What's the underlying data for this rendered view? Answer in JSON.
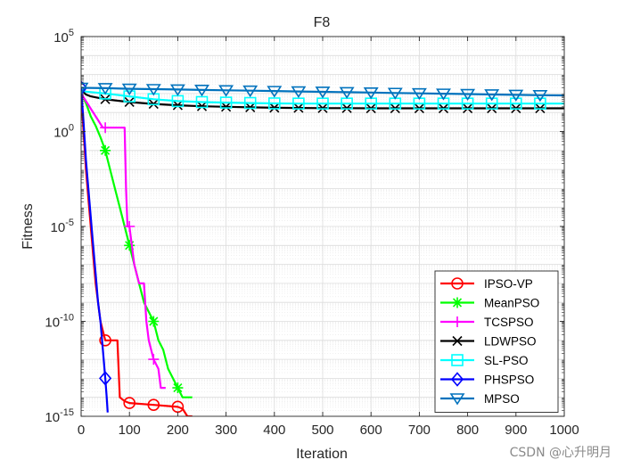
{
  "chart_data": {
    "type": "line",
    "title": "F8",
    "xlabel": "Iteration",
    "ylabel": "Fitness",
    "xlim": [
      0,
      1000
    ],
    "ylim_log10": [
      -15,
      5
    ],
    "yscale": "log",
    "grid": true,
    "x_ticks": [
      0,
      100,
      200,
      300,
      400,
      500,
      600,
      700,
      800,
      900,
      1000
    ],
    "y_ticks": [
      {
        "exp": 5,
        "base": "10",
        "power": "5"
      },
      {
        "exp": 0,
        "base": "10",
        "power": "0"
      },
      {
        "exp": -5,
        "base": "10",
        "power": "-5"
      },
      {
        "exp": -10,
        "base": "10",
        "power": "-10"
      },
      {
        "exp": -15,
        "base": "10",
        "power": "-15"
      }
    ],
    "legend_position": "bottom-right",
    "series": [
      {
        "name": "IPSO-VP",
        "color": "#ff0000",
        "marker": "circle",
        "x": [
          0,
          5,
          10,
          15,
          20,
          25,
          30,
          35,
          40,
          45,
          50,
          60,
          70,
          75,
          80,
          90,
          100,
          150,
          200,
          210,
          220,
          230
        ],
        "log10_y": [
          2.0,
          0.0,
          -2.0,
          -3.5,
          -5.0,
          -6.5,
          -8.0,
          -9.0,
          -10.0,
          -10.5,
          -11.0,
          -11.0,
          -11.0,
          -11.0,
          -14.0,
          -14.2,
          -14.3,
          -14.4,
          -14.5,
          -14.6,
          -15.0,
          -15.0
        ],
        "markers_at": [
          50,
          100,
          150,
          200
        ]
      },
      {
        "name": "MeanPSO",
        "color": "#00ff00",
        "marker": "asterisk",
        "x": [
          0,
          10,
          20,
          30,
          40,
          50,
          60,
          70,
          80,
          90,
          100,
          110,
          120,
          130,
          140,
          150,
          160,
          170,
          180,
          190,
          200,
          210,
          220,
          230
        ],
        "log10_y": [
          2.0,
          1.5,
          0.8,
          0.3,
          -0.3,
          -1.0,
          -2.0,
          -3.0,
          -4.0,
          -5.0,
          -6.0,
          -7.0,
          -8.0,
          -9.0,
          -9.5,
          -10.0,
          -11.0,
          -11.5,
          -12.5,
          -13.0,
          -13.5,
          -14.0,
          -14.0,
          -14.0
        ],
        "markers_at": [
          50,
          100,
          150,
          200
        ]
      },
      {
        "name": "TCSPSO",
        "color": "#ff00ff",
        "marker": "plus",
        "x": [
          0,
          10,
          20,
          30,
          40,
          45,
          50,
          60,
          70,
          80,
          90,
          93,
          96,
          100,
          110,
          120,
          130,
          135,
          140,
          150,
          160,
          165,
          170,
          175
        ],
        "log10_y": [
          2.0,
          1.6,
          1.2,
          0.8,
          0.4,
          0.2,
          0.2,
          0.2,
          0.2,
          0.2,
          0.2,
          -3.0,
          -5.0,
          -5.0,
          -7.0,
          -8.0,
          -8.0,
          -10.0,
          -11.0,
          -12.0,
          -12.5,
          -13.5,
          -13.5,
          -13.5
        ],
        "markers_at": [
          50,
          100,
          150
        ]
      },
      {
        "name": "LDWPSO",
        "color": "#000000",
        "marker": "cross",
        "x": [
          0,
          10,
          20,
          30,
          50,
          100,
          150,
          200,
          250,
          300,
          350,
          400,
          450,
          500,
          550,
          600,
          650,
          700,
          750,
          800,
          850,
          900,
          950,
          1000
        ],
        "log10_y": [
          2.2,
          1.95,
          1.85,
          1.8,
          1.7,
          1.55,
          1.45,
          1.38,
          1.33,
          1.3,
          1.27,
          1.25,
          1.24,
          1.23,
          1.23,
          1.22,
          1.22,
          1.22,
          1.22,
          1.22,
          1.22,
          1.22,
          1.22,
          1.22
        ],
        "markers_at": [
          50,
          100,
          150,
          200,
          250,
          300,
          350,
          400,
          450,
          500,
          550,
          600,
          650,
          700,
          750,
          800,
          850,
          900,
          950
        ]
      },
      {
        "name": "SL-PSO",
        "color": "#00ffff",
        "marker": "square",
        "x": [
          0,
          10,
          30,
          50,
          100,
          150,
          200,
          250,
          300,
          350,
          400,
          450,
          500,
          550,
          600,
          650,
          700,
          750,
          800,
          850,
          900,
          950,
          1000
        ],
        "log10_y": [
          2.2,
          2.1,
          2.05,
          2.0,
          1.85,
          1.7,
          1.6,
          1.55,
          1.52,
          1.5,
          1.48,
          1.47,
          1.47,
          1.47,
          1.47,
          1.47,
          1.47,
          1.47,
          1.47,
          1.47,
          1.47,
          1.47,
          1.47
        ],
        "markers_at": [
          50,
          100,
          150,
          200,
          250,
          300,
          350,
          400,
          450,
          500,
          550,
          600,
          650,
          700,
          750,
          800,
          850,
          900,
          950
        ]
      },
      {
        "name": "PHSPSO",
        "color": "#0000ff",
        "marker": "diamond",
        "x": [
          0,
          5,
          10,
          15,
          20,
          25,
          30,
          35,
          40,
          45,
          50,
          53,
          55
        ],
        "log10_y": [
          2.3,
          0.5,
          -1.5,
          -3.0,
          -4.5,
          -6.0,
          -7.5,
          -9.0,
          -10.0,
          -11.5,
          -13.0,
          -14.0,
          -14.8
        ],
        "markers_at": [
          0,
          50
        ]
      },
      {
        "name": "MPSO",
        "color": "#0072bd",
        "marker": "triangle-down",
        "x": [
          0,
          50,
          100,
          150,
          200,
          250,
          300,
          350,
          400,
          450,
          500,
          550,
          600,
          650,
          700,
          750,
          800,
          850,
          900,
          950,
          1000
        ],
        "log10_y": [
          2.3,
          2.28,
          2.25,
          2.23,
          2.21,
          2.19,
          2.17,
          2.15,
          2.13,
          2.11,
          2.09,
          2.07,
          2.05,
          2.03,
          2.01,
          1.99,
          1.97,
          1.95,
          1.93,
          1.91,
          1.9
        ],
        "markers_at": [
          0,
          50,
          100,
          150,
          200,
          250,
          300,
          350,
          400,
          450,
          500,
          550,
          600,
          650,
          700,
          750,
          800,
          850,
          900,
          950
        ]
      }
    ]
  },
  "watermark": "CSDN @心升明月"
}
